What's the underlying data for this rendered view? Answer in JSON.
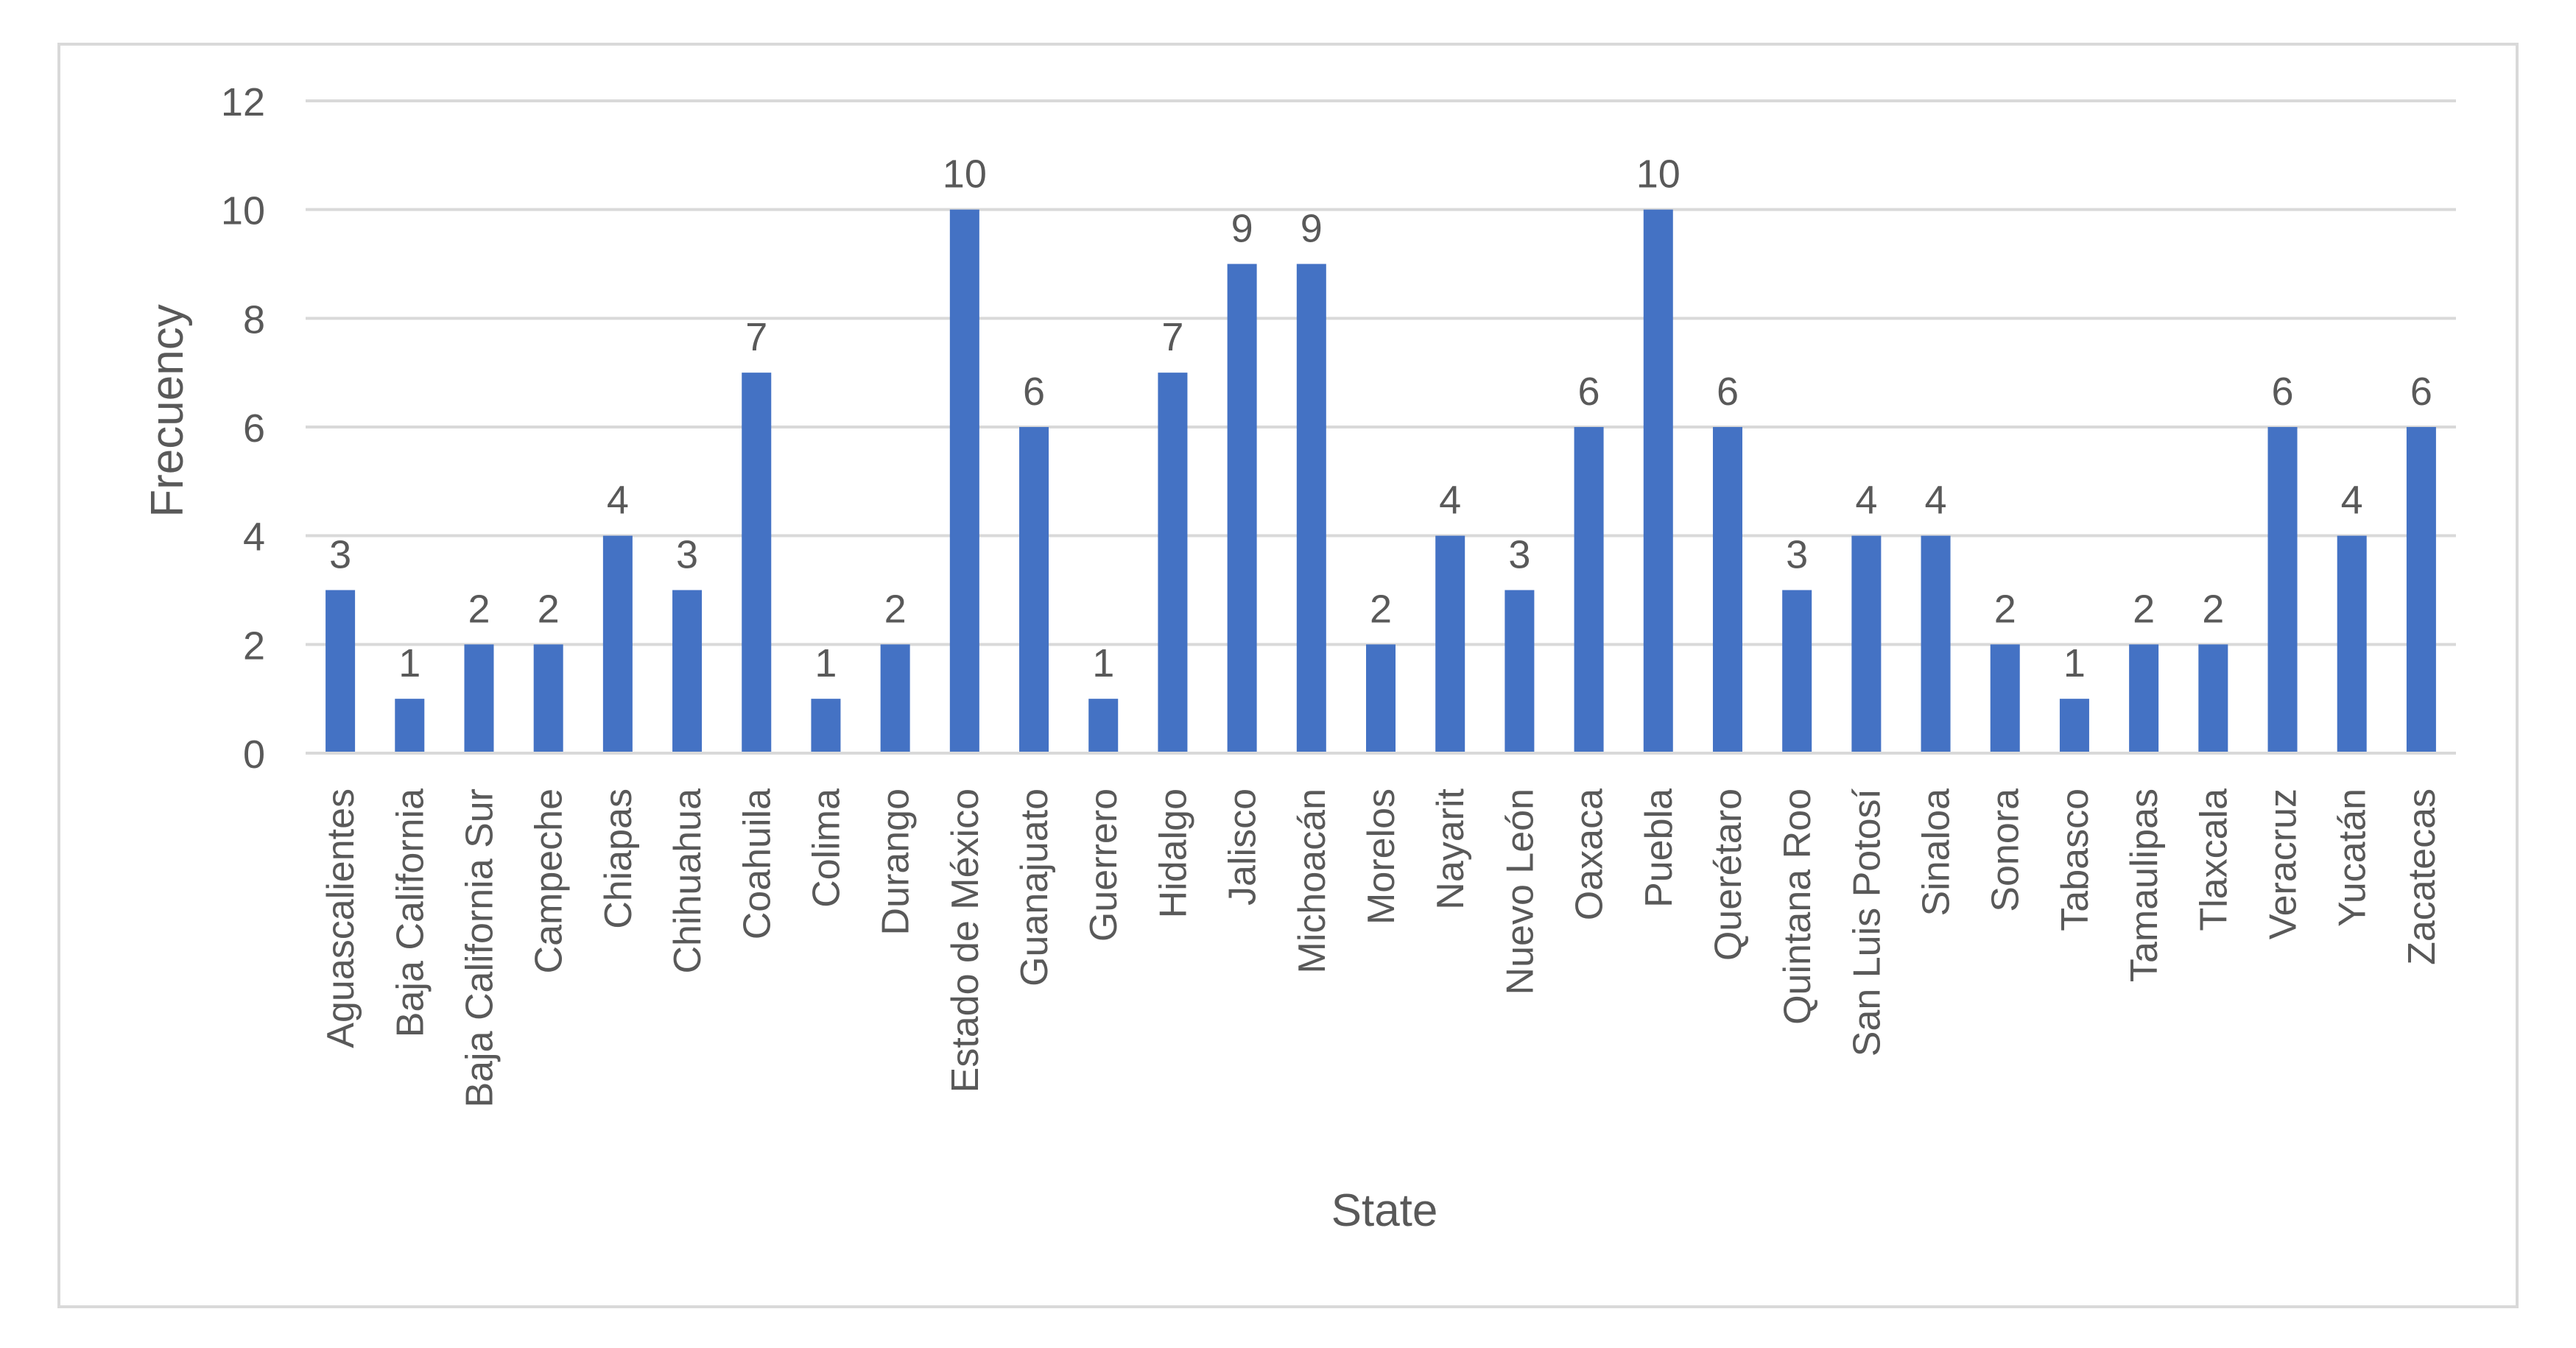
{
  "chart_data": {
    "type": "bar",
    "title": "",
    "xlabel": "State",
    "ylabel": "Frecuency",
    "ylim": [
      0,
      12
    ],
    "yticks": [
      0,
      2,
      4,
      6,
      8,
      10,
      12
    ],
    "grid": true,
    "legend": "none",
    "colors": {
      "bar": "#4472C4",
      "grid": "#D9D9D9",
      "text": "#595959",
      "border": "#D9D9D9"
    },
    "categories": [
      "Aguascalientes",
      "Baja California",
      "Baja California Sur",
      "Campeche",
      "Chiapas",
      "Chihuahua",
      "Coahuila",
      "Colima",
      "Durango",
      "Estado de México",
      "Guanajuato",
      "Guerrero",
      "Hidalgo",
      "Jalisco",
      "Michoacán",
      "Morelos",
      "Nayarit",
      "Nuevo León",
      "Oaxaca",
      "Puebla",
      "Querétaro",
      "Quintana Roo",
      "San Luis Potosí",
      "Sinaloa",
      "Sonora",
      "Tabasco",
      "Tamaulipas",
      "Tlaxcala",
      "Veracruz",
      "Yucatán",
      "Zacatecas"
    ],
    "values": [
      3,
      1,
      2,
      2,
      4,
      3,
      7,
      1,
      2,
      10,
      6,
      1,
      7,
      9,
      9,
      2,
      4,
      3,
      6,
      10,
      6,
      3,
      4,
      4,
      2,
      1,
      2,
      2,
      6,
      4,
      6
    ],
    "data_labels": true
  }
}
